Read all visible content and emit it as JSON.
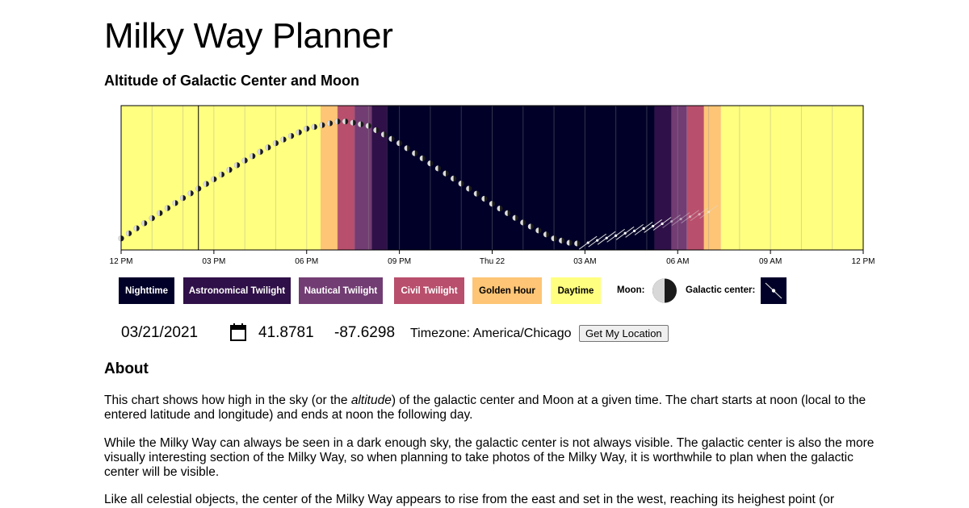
{
  "page": {
    "title": "Milky Way Planner",
    "subtitle": "Altitude of Galactic Center and Moon"
  },
  "chart_data": {
    "type": "line",
    "x_tick_labels": [
      "12 PM",
      "03 PM",
      "06 PM",
      "09 PM",
      "Thu 22",
      "03 AM",
      "06 AM",
      "09 AM",
      "12 PM"
    ],
    "x_range_hours": [
      0,
      24
    ],
    "current_time_hours": 2.5,
    "sky_bands": [
      {
        "name": "Daytime",
        "start": 0,
        "end": 6.45,
        "color": "#ffff80"
      },
      {
        "name": "Golden Hour",
        "start": 6.45,
        "end": 7.0,
        "color": "#fdc575"
      },
      {
        "name": "Civil Twilight",
        "start": 7.0,
        "end": 7.55,
        "color": "#b84f6c"
      },
      {
        "name": "Nautical Twilight",
        "start": 7.55,
        "end": 8.1,
        "color": "#723d73"
      },
      {
        "name": "Astronomical Twilight",
        "start": 8.1,
        "end": 8.6,
        "color": "#301048"
      },
      {
        "name": "Nighttime",
        "start": 8.6,
        "end": 17.25,
        "color": "#000028"
      },
      {
        "name": "Astronomical Twilight",
        "start": 17.25,
        "end": 17.8,
        "color": "#301048"
      },
      {
        "name": "Nautical Twilight",
        "start": 17.8,
        "end": 18.3,
        "color": "#723d73"
      },
      {
        "name": "Civil Twilight",
        "start": 18.3,
        "end": 18.85,
        "color": "#b84f6c"
      },
      {
        "name": "Golden Hour",
        "start": 18.85,
        "end": 19.4,
        "color": "#fdc575"
      },
      {
        "name": "Daytime",
        "start": 19.4,
        "end": 24,
        "color": "#ffff80"
      }
    ],
    "moon_altitude": {
      "times": [
        0,
        1,
        2,
        3,
        4,
        5,
        6,
        7,
        7.3,
        8,
        9,
        10,
        11,
        12,
        13,
        14,
        14.5,
        15
      ],
      "altitude_fraction": [
        0.08,
        0.22,
        0.36,
        0.49,
        0.62,
        0.74,
        0.84,
        0.89,
        0.89,
        0.86,
        0.74,
        0.6,
        0.46,
        0.32,
        0.19,
        0.08,
        0.05,
        0.04
      ]
    },
    "galactic_center_visible": {
      "start": 15.1,
      "end": 19.3,
      "altitude_fraction_start": 0.05,
      "altitude_fraction_end": 0.28
    }
  },
  "legend": {
    "nighttime": "Nighttime",
    "astronomical": "Astronomical Twilight",
    "nautical": "Nautical Twilight",
    "civil": "Civil Twilight",
    "golden": "Golden Hour",
    "daytime": "Daytime",
    "moon_label": "Moon:",
    "galactic_label": "Galactic center:",
    "colors": {
      "nighttime": "#000028",
      "astronomical": "#301048",
      "nautical": "#723d73",
      "civil": "#b84f6c",
      "golden": "#fdc575",
      "daytime": "#ffff80"
    }
  },
  "controls": {
    "date": "03/21/2021",
    "calendar_icon": "calendar-icon",
    "latitude": "41.8781",
    "longitude": "-87.6298",
    "timezone": "Timezone: America/Chicago",
    "location_button": "Get My Location"
  },
  "about": {
    "heading": "About",
    "p1_before": "This chart shows how high in the sky (or the ",
    "p1_em": "altitude",
    "p1_after": ") of the galactic center and Moon at a given time. The chart starts at noon (local to the entered latitude and longitude) and ends at noon the following day.",
    "p2": "While the Milky Way can always be seen in a dark enough sky, the galactic center is not always visible. The galactic center is also the more visually interesting section of the Milky Way, so when planning to take photos of the Milky Way, it is worthwhile to plan when the galactic center will be visible.",
    "p3": "Like all celestial objects, the center of the Milky Way appears to rise from the east and set in the west, reaching its heighest point (or"
  }
}
